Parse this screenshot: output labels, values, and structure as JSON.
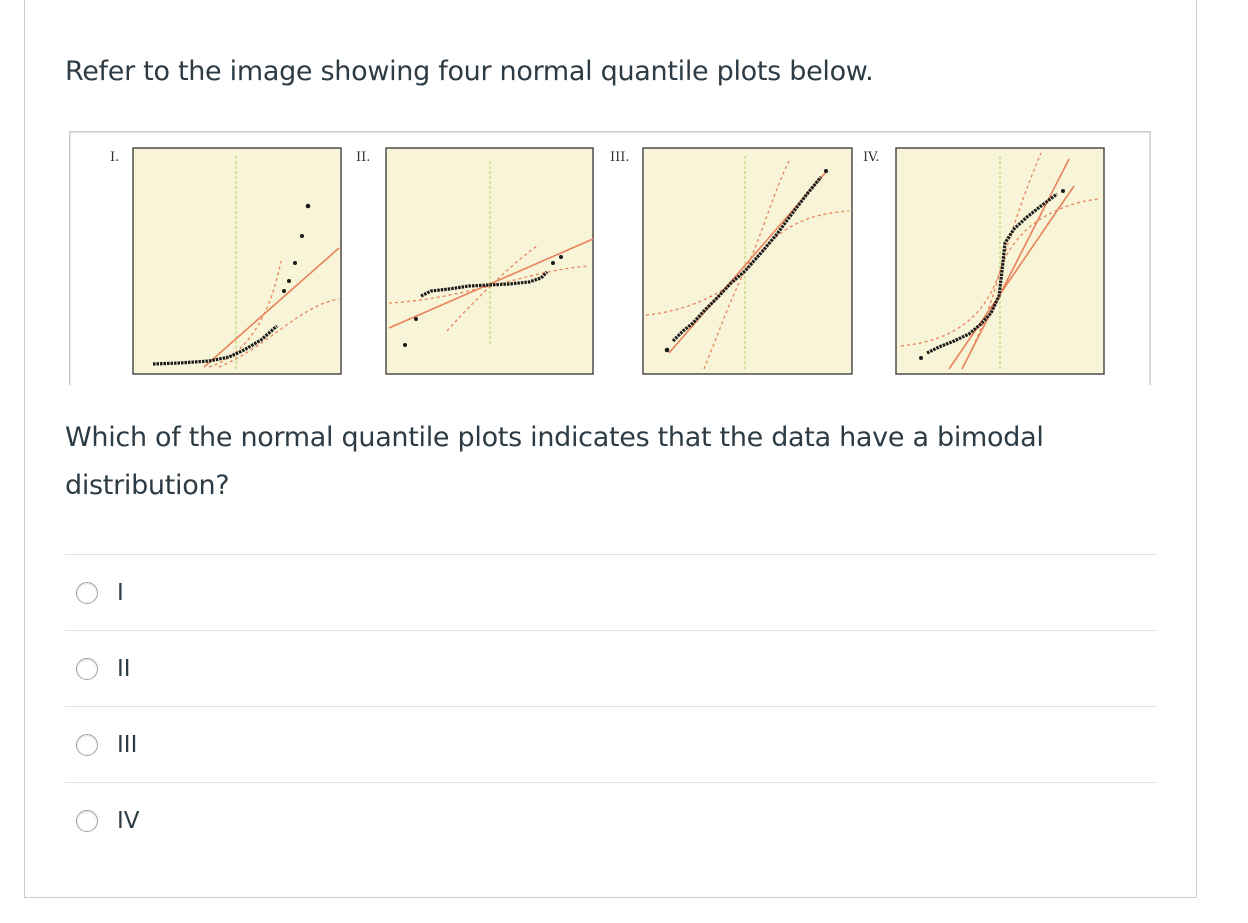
{
  "question": {
    "prompt": "Refer to the image showing four normal quantile plots below.",
    "text": "Which of the normal quantile plots indicates that the data have a bimodal distribution?"
  },
  "figure": {
    "panel_labels": [
      "I.",
      "II.",
      "III.",
      "IV."
    ],
    "colors": {
      "panel_background": "#f8f4d8",
      "reference_line": "#e8825a",
      "confidence_band": "#e8825a",
      "center_line": "#c8dc8a",
      "points": "#1a1a1a"
    }
  },
  "answers": [
    {
      "label": "I"
    },
    {
      "label": "II"
    },
    {
      "label": "III"
    },
    {
      "label": "IV"
    }
  ]
}
